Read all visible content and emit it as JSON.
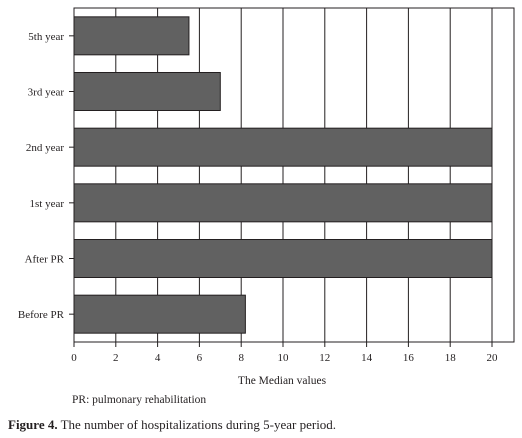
{
  "chart_data": {
    "type": "bar",
    "orientation": "horizontal",
    "categories": [
      "Before PR",
      "After PR",
      "1st year",
      "2nd year",
      "3rd year",
      "5th year"
    ],
    "values": [
      8.2,
      20,
      20,
      20,
      7,
      5.5
    ],
    "xlabel": "The Median values",
    "ylabel": "",
    "xlim": [
      0,
      21
    ],
    "xticks": [
      0,
      2,
      4,
      6,
      8,
      10,
      12,
      14,
      16,
      18,
      20
    ],
    "grid": "vertical",
    "bar_color": "#616161"
  },
  "note": "PR: pulmonary rehabilitation",
  "caption": {
    "label": "Figure 4.",
    "text": " The number of hospitalizations during 5-year period."
  }
}
